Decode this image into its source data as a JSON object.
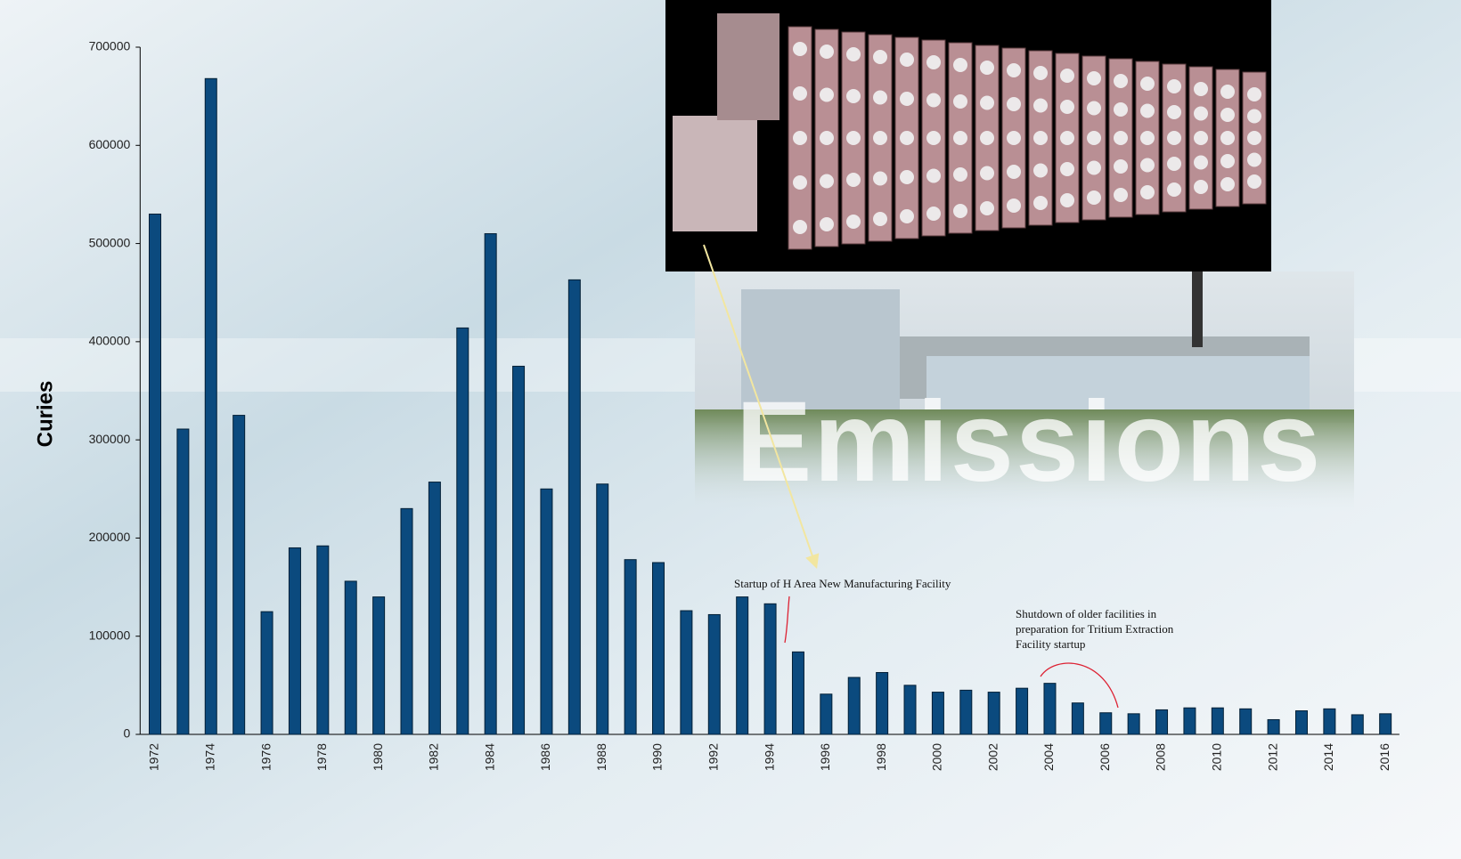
{
  "chart_data": {
    "type": "bar",
    "y_label": "Curies",
    "watermark": "Emissions",
    "annotations": [
      "Startup of H Area New Manufacturing Facility",
      "Shutdown of older facilities in preparation for Tritium Extraction Facility startup"
    ],
    "categories": [
      "1972",
      null,
      "1974",
      null,
      "1976",
      null,
      "1978",
      null,
      "1980",
      null,
      "1982",
      null,
      "1984",
      null,
      "1986",
      null,
      "1988",
      null,
      "1990",
      null,
      "1992",
      null,
      "1994",
      null,
      "1996",
      null,
      "1998",
      null,
      "2000",
      null,
      "2002",
      null,
      "2004",
      null,
      "2006",
      null,
      "2008",
      null,
      "2010",
      null,
      "2012",
      null,
      "2014",
      null,
      "2016"
    ],
    "values": [
      530000,
      311000,
      668000,
      325000,
      125000,
      190000,
      192000,
      156000,
      140000,
      230000,
      257000,
      414000,
      510000,
      375000,
      250000,
      463000,
      255000,
      178000,
      175000,
      126000,
      122000,
      140000,
      133000,
      84000,
      41000,
      58000,
      63000,
      50000,
      43000,
      45000,
      43000,
      47000,
      52000,
      32000,
      22000,
      21000,
      25000,
      27000,
      27000,
      26000,
      15000,
      24000,
      26000,
      20000,
      21000
    ],
    "color": "#0b4a7e",
    "ylim": [
      0,
      700000
    ],
    "yticks": [
      0,
      100000,
      200000,
      300000,
      400000,
      500000,
      600000,
      700000
    ]
  }
}
